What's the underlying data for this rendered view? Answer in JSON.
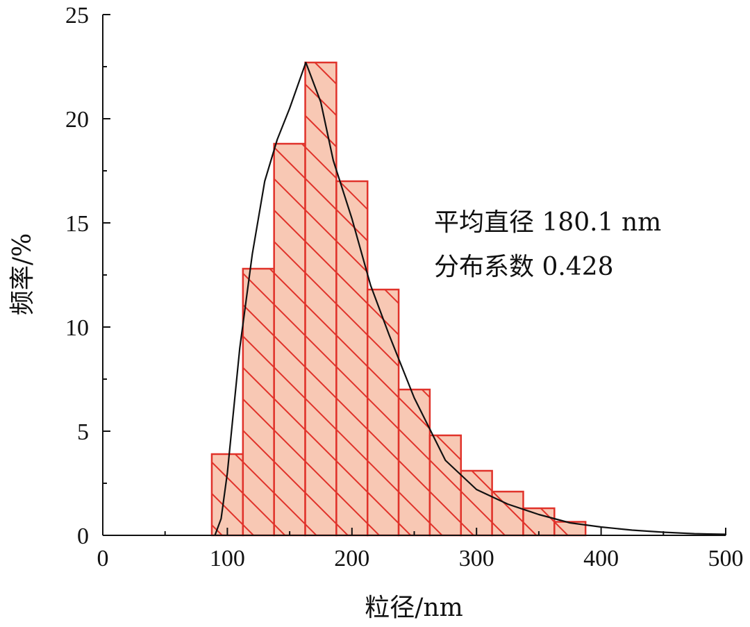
{
  "chart_data": {
    "type": "bar",
    "title": "",
    "xlabel": "粒径/nm",
    "ylabel": "频率/%",
    "xlim": [
      0,
      500
    ],
    "ylim": [
      0,
      25
    ],
    "x_ticks": [
      0,
      100,
      200,
      300,
      400,
      500
    ],
    "y_ticks": [
      0,
      5,
      10,
      15,
      20,
      25
    ],
    "bin_width": 25,
    "bins": [
      {
        "start": 87.5,
        "value": 3.9
      },
      {
        "start": 112.5,
        "value": 12.8
      },
      {
        "start": 137.5,
        "value": 18.8
      },
      {
        "start": 162.5,
        "value": 22.7
      },
      {
        "start": 187.5,
        "value": 17.0
      },
      {
        "start": 212.5,
        "value": 11.8
      },
      {
        "start": 237.5,
        "value": 7.0
      },
      {
        "start": 262.5,
        "value": 4.8
      },
      {
        "start": 287.5,
        "value": 3.1
      },
      {
        "start": 312.5,
        "value": 2.1
      },
      {
        "start": 337.5,
        "value": 1.3
      },
      {
        "start": 362.5,
        "value": 0.65
      }
    ],
    "fit_curve": {
      "name": "distribution fit",
      "x": [
        90,
        95,
        100,
        110,
        120,
        130,
        140,
        150,
        163,
        175,
        185,
        200,
        215,
        230,
        250,
        275,
        300,
        325,
        350,
        375,
        400,
        425,
        450,
        475,
        500
      ],
      "y": [
        0.0,
        0.8,
        3.0,
        9.0,
        13.5,
        17.0,
        19.0,
        20.5,
        22.7,
        20.8,
        18.0,
        15.2,
        12.0,
        9.6,
        6.6,
        3.6,
        2.2,
        1.5,
        1.0,
        0.6,
        0.4,
        0.25,
        0.15,
        0.08,
        0.05
      ]
    },
    "annotations": [
      "平均直径 180.1 nm",
      "分布系数 0.428"
    ],
    "bar_fill": "#f8c8b4",
    "bar_edge": "#e0322a",
    "hatch_color": "#e0322a",
    "curve_color": "#111111"
  }
}
